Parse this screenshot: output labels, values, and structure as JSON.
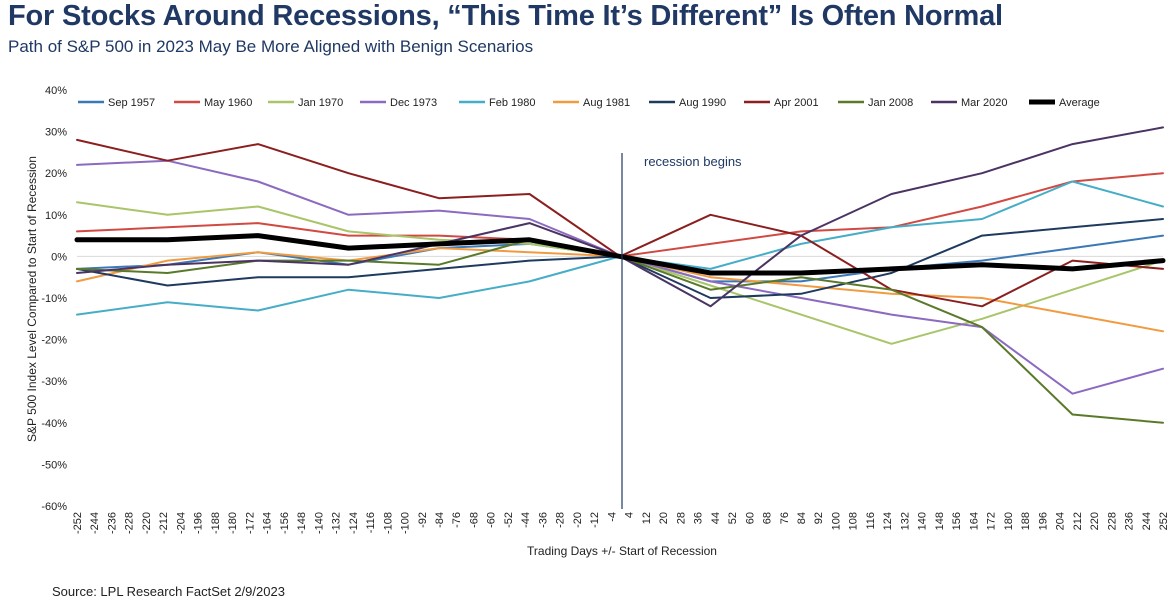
{
  "title": "For Stocks Around Recessions, “This Time It’s Different” Is Often Normal",
  "subtitle": "Path of S&P 500 in 2023 May Be More Aligned with Benign Scenarios",
  "source": "Source: LPL Research FactSet 2/9/2023",
  "chart_data": {
    "type": "line",
    "xlabel": "Trading Days +/- Start of Recession",
    "ylabel": "S&P 500 Index Level Compared to Start of Recession",
    "annotation": "recession begins",
    "xlim": [
      -252,
      252
    ],
    "ylim": [
      -60,
      40
    ],
    "y_ticks": [
      "40%",
      "30%",
      "20%",
      "10%",
      "0%",
      "-10%",
      "-20%",
      "-30%",
      "-40%",
      "-50%",
      "-60%"
    ],
    "x_ticks": [
      "-252",
      "-244",
      "-236",
      "-228",
      "-220",
      "-212",
      "-204",
      "-196",
      "-188",
      "-180",
      "-172",
      "-164",
      "-156",
      "-148",
      "-140",
      "-132",
      "-124",
      "-116",
      "-108",
      "-100",
      "-92",
      "-84",
      "-76",
      "-68",
      "-60",
      "-52",
      "-44",
      "-36",
      "-28",
      "-20",
      "-12",
      "-4",
      "4",
      "12",
      "20",
      "28",
      "36",
      "44",
      "52",
      "60",
      "68",
      "76",
      "84",
      "92",
      "100",
      "108",
      "116",
      "124",
      "132",
      "140",
      "148",
      "156",
      "164",
      "172",
      "180",
      "188",
      "196",
      "204",
      "212",
      "220",
      "228",
      "236",
      "244",
      "252"
    ],
    "legend_position": "top",
    "series": [
      {
        "name": "Sep 1957",
        "color": "#3a78b6",
        "width": 2,
        "x": [
          -252,
          -210,
          -168,
          -126,
          -84,
          -42,
          0,
          42,
          84,
          126,
          168,
          210,
          252
        ],
        "y": [
          -3,
          -2,
          1,
          -2,
          2,
          3,
          0,
          -6,
          -6,
          -3,
          -1,
          2,
          5
        ]
      },
      {
        "name": "May 1960",
        "color": "#d04a42",
        "width": 2,
        "x": [
          -252,
          -210,
          -168,
          -126,
          -84,
          -42,
          0,
          42,
          84,
          126,
          168,
          210,
          252
        ],
        "y": [
          6,
          7,
          8,
          5,
          5,
          4,
          0,
          3,
          6,
          7,
          12,
          18,
          20
        ]
      },
      {
        "name": "Jan 1970",
        "color": "#a9c569",
        "width": 2,
        "x": [
          -252,
          -210,
          -168,
          -126,
          -84,
          -42,
          0,
          42,
          84,
          126,
          168,
          210,
          252
        ],
        "y": [
          13,
          10,
          12,
          6,
          4,
          3,
          0,
          -7,
          -14,
          -21,
          -15,
          -8,
          -1
        ]
      },
      {
        "name": "Dec 1973",
        "color": "#8c6ac0",
        "width": 2,
        "x": [
          -252,
          -210,
          -168,
          -126,
          -84,
          -42,
          0,
          42,
          84,
          126,
          168,
          210,
          252
        ],
        "y": [
          22,
          23,
          18,
          10,
          11,
          9,
          0,
          -6,
          -10,
          -14,
          -17,
          -33,
          -27
        ]
      },
      {
        "name": "Feb 1980",
        "color": "#46adc7",
        "width": 2,
        "x": [
          -252,
          -210,
          -168,
          -126,
          -84,
          -42,
          0,
          42,
          84,
          126,
          168,
          210,
          252
        ],
        "y": [
          -14,
          -11,
          -13,
          -8,
          -10,
          -6,
          0,
          -3,
          3,
          7,
          9,
          18,
          12
        ]
      },
      {
        "name": "Aug 1981",
        "color": "#f19b40",
        "width": 2,
        "x": [
          -252,
          -210,
          -168,
          -126,
          -84,
          -42,
          0,
          42,
          84,
          126,
          168,
          210,
          252
        ],
        "y": [
          -6,
          -1,
          1,
          -1,
          2,
          1,
          0,
          -5,
          -7,
          -9,
          -10,
          -14,
          -18
        ]
      },
      {
        "name": "Aug 1990",
        "color": "#1f3a5f",
        "width": 2,
        "x": [
          -252,
          -210,
          -168,
          -126,
          -84,
          -42,
          0,
          42,
          84,
          126,
          168,
          210,
          252
        ],
        "y": [
          -3,
          -7,
          -5,
          -5,
          -3,
          -1,
          0,
          -10,
          -9,
          -4,
          5,
          7,
          9
        ]
      },
      {
        "name": "Apr 2001",
        "color": "#8b1f1f",
        "width": 2,
        "x": [
          -252,
          -210,
          -168,
          -126,
          -84,
          -42,
          0,
          42,
          84,
          126,
          168,
          210,
          252
        ],
        "y": [
          28,
          23,
          27,
          20,
          14,
          15,
          0,
          10,
          5,
          -8,
          -12,
          -1,
          -3
        ]
      },
      {
        "name": "Jan 2008",
        "color": "#5a7a2a",
        "width": 2,
        "x": [
          -252,
          -210,
          -168,
          -126,
          -84,
          -42,
          0,
          42,
          84,
          126,
          168,
          210,
          252
        ],
        "y": [
          -3,
          -4,
          -1,
          -1,
          -2,
          4,
          0,
          -8,
          -5,
          -8,
          -17,
          -38,
          -40
        ]
      },
      {
        "name": "Mar 2020",
        "color": "#4b3464",
        "width": 2,
        "x": [
          -252,
          -210,
          -168,
          -126,
          -84,
          -42,
          0,
          42,
          84,
          126,
          168,
          210,
          252
        ],
        "y": [
          -4,
          -2,
          -1,
          -2,
          3,
          8,
          0,
          -12,
          5,
          15,
          20,
          27,
          31
        ]
      },
      {
        "name": "Average",
        "color": "#000000",
        "width": 5,
        "x": [
          -252,
          -210,
          -168,
          -126,
          -84,
          -42,
          0,
          42,
          84,
          126,
          168,
          210,
          252
        ],
        "y": [
          4,
          4,
          5,
          2,
          3,
          4,
          0,
          -4,
          -4,
          -3,
          -2,
          -3,
          -1
        ]
      }
    ]
  }
}
